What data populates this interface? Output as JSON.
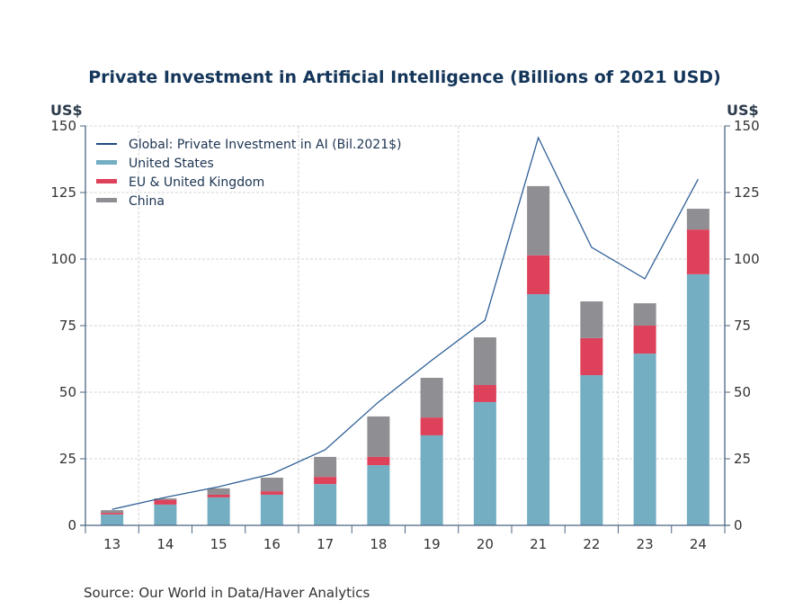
{
  "chart_data": {
    "type": "bar",
    "stacked": true,
    "title": "Private Investment in Artificial Intelligence (Billions of 2021 USD)",
    "ylabel_left": "US$",
    "ylabel_right": "US$",
    "ylim": [
      0,
      150
    ],
    "yticks": [
      0,
      25,
      50,
      75,
      100,
      125,
      150
    ],
    "categories": [
      "13",
      "14",
      "15",
      "16",
      "17",
      "18",
      "19",
      "20",
      "21",
      "22",
      "23",
      "24"
    ],
    "series": [
      {
        "name": "United States",
        "kind": "bar",
        "color": "#74aec3",
        "values": [
          4.1,
          7.8,
          10.5,
          11.5,
          15.5,
          22.6,
          33.8,
          46.3,
          86.8,
          56.4,
          64.5,
          94.3
        ]
      },
      {
        "name": "EU & United Kingdom",
        "kind": "bar",
        "color": "#de425b",
        "values": [
          0.6,
          1.8,
          1.0,
          1.3,
          2.7,
          3.1,
          6.7,
          6.4,
          14.6,
          13.9,
          10.5,
          16.8
        ]
      },
      {
        "name": "China",
        "kind": "bar",
        "color": "#8f8e93",
        "values": [
          1.0,
          0.5,
          2.4,
          5.1,
          7.5,
          15.2,
          14.9,
          17.9,
          26.0,
          13.8,
          8.4,
          7.8
        ]
      },
      {
        "name": "Global: Private Investment in AI (Bil.2021$)",
        "kind": "line",
        "color": "#2f5f96",
        "values": [
          6.0,
          10.5,
          14.5,
          19.3,
          28.4,
          46.3,
          62.0,
          77.0,
          145.6,
          104.4,
          92.6,
          130.0
        ]
      }
    ],
    "legend_position": "top-left",
    "grid": true,
    "source": "Source:  Our World in Data/Haver Analytics"
  }
}
